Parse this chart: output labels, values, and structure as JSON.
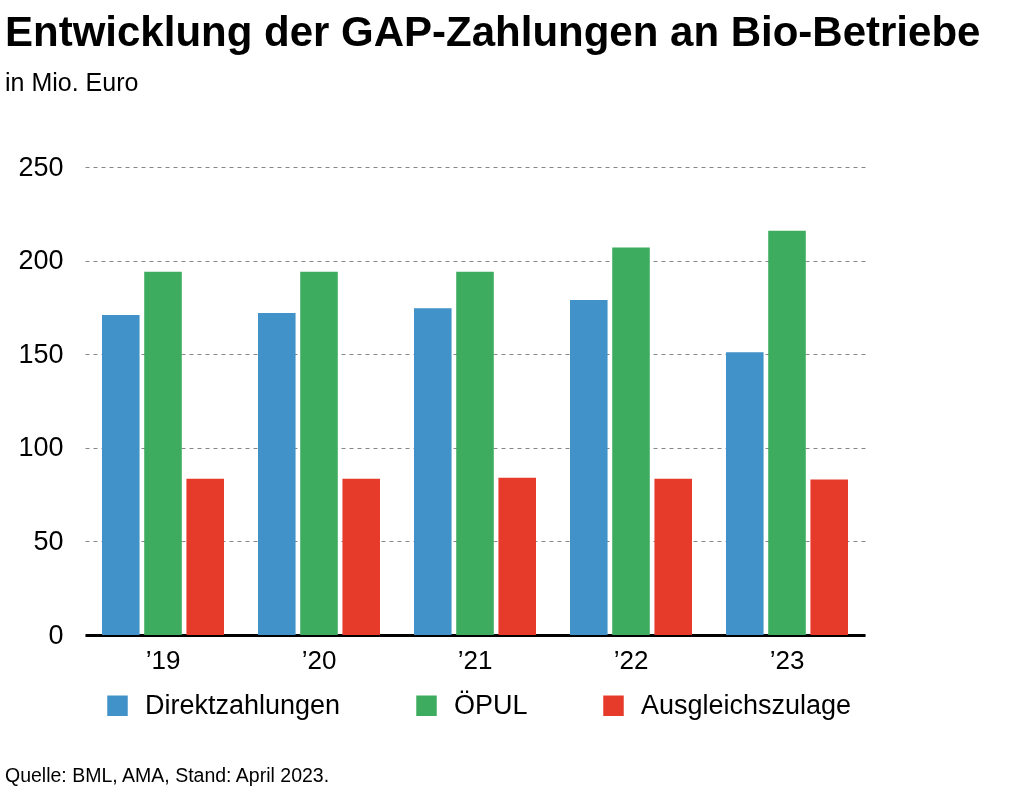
{
  "chart_data": {
    "type": "bar",
    "title": "Entwicklung der GAP-Zahlungen an Bio-Betriebe",
    "subtitle": "in Mio. Euro",
    "categories": [
      "’19",
      "’20",
      "’21",
      "’22",
      "’23"
    ],
    "series": [
      {
        "name": "Direktzahlungen",
        "color": "#4192c8",
        "values": [
          171,
          172,
          174.5,
          179,
          151
        ]
      },
      {
        "name": "ÖPUL",
        "color": "#3eac5f",
        "values": [
          194,
          194,
          194,
          207,
          216
        ]
      },
      {
        "name": "Ausgleichszulage",
        "color": "#e63a2a",
        "values": [
          83.5,
          83.5,
          84,
          83.5,
          83
        ]
      }
    ],
    "ylim": [
      0,
      250
    ],
    "yticks": [
      0,
      50,
      100,
      150,
      200,
      250
    ],
    "grid": "y",
    "legend": "bottom",
    "annotations": [
      "Quelle: BML, AMA, Stand: April 2023."
    ]
  }
}
